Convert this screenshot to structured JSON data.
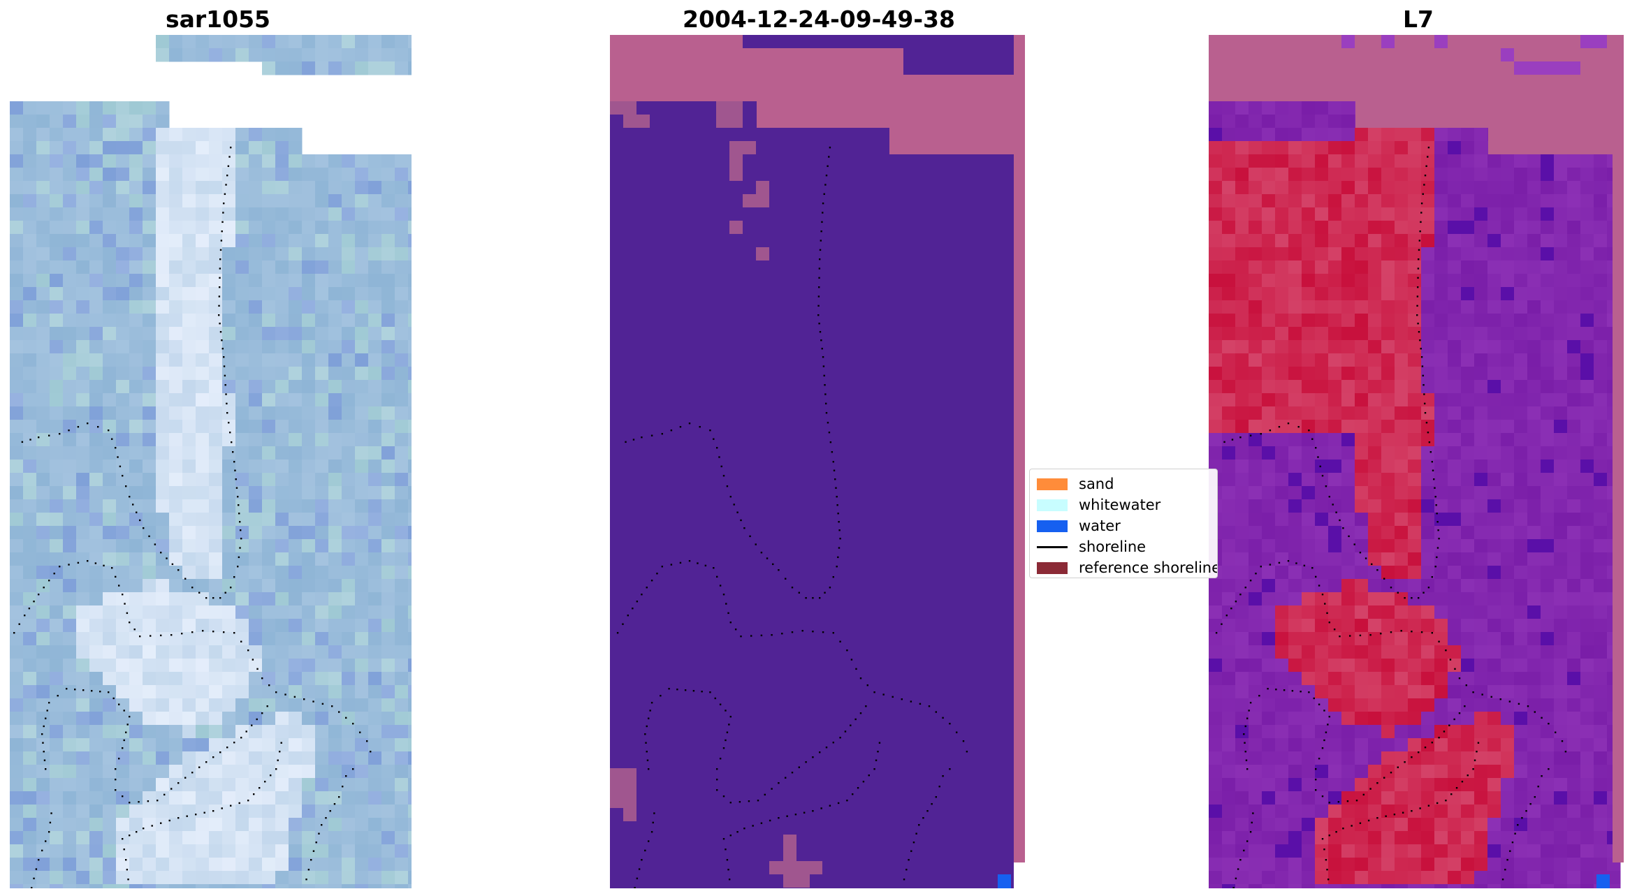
{
  "panels": [
    {
      "title": "sar1055",
      "image": "rgb composite"
    },
    {
      "title": "2004-12-24-09-49-38",
      "image": "classified image"
    },
    {
      "title": "L7",
      "image": "mndwi"
    }
  ],
  "legend": {
    "items": [
      {
        "label": "sand",
        "type": "patch",
        "color": "#ff8c3a"
      },
      {
        "label": "whitewater",
        "type": "patch",
        "color": "#c8fdff"
      },
      {
        "label": "water",
        "type": "patch",
        "color": "#1660f0"
      },
      {
        "label": "shoreline",
        "type": "line",
        "color": "#000000"
      },
      {
        "label": "reference shoreline",
        "type": "patch",
        "color": "#8b2a36"
      }
    ]
  },
  "colors": {
    "sar_base": "#8fb5d6",
    "sar_whitewater": "#eef4ff",
    "class_background": "#512395",
    "class_nodata": "#b9608f",
    "mndwi_water": "#7a1ea8",
    "mndwi_land": "#c8103c",
    "mndwi_nodata": "#b9608f",
    "water_pixel": "#1660f0"
  }
}
